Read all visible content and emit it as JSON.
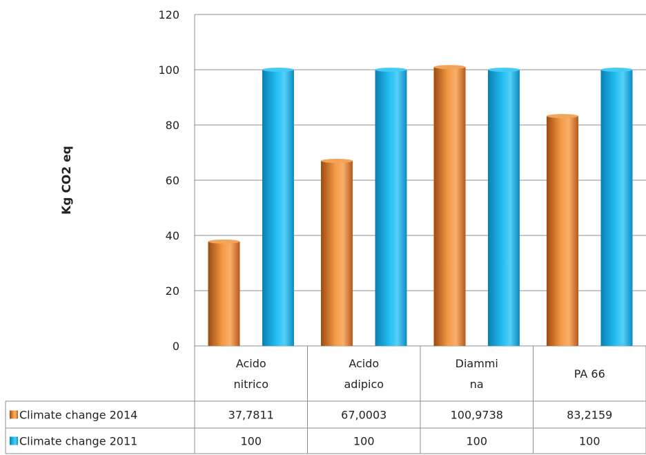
{
  "chart_data": {
    "type": "bar",
    "ylabel": "Kg CO2  eq",
    "ylim": [
      0,
      120
    ],
    "yticks": [
      0,
      20,
      40,
      60,
      80,
      100,
      120
    ],
    "grid": true,
    "legend": "data-table",
    "categories": [
      [
        "Acido",
        "nitrico"
      ],
      [
        "Acido",
        "adipico"
      ],
      [
        "Diammi",
        "na"
      ],
      [
        "PA 66"
      ]
    ],
    "series": [
      {
        "name": "Climate change 2014",
        "color": "#E07A20",
        "values": [
          37.7811,
          67.0003,
          100.9738,
          83.2159
        ],
        "labels": [
          "37,7811",
          "67,0003",
          "100,9738",
          "83,2159"
        ]
      },
      {
        "name": "Climate change 2011",
        "color": "#14ACE6",
        "values": [
          100,
          100,
          100,
          100
        ],
        "labels": [
          "100",
          "100",
          "100",
          "100"
        ]
      }
    ]
  }
}
